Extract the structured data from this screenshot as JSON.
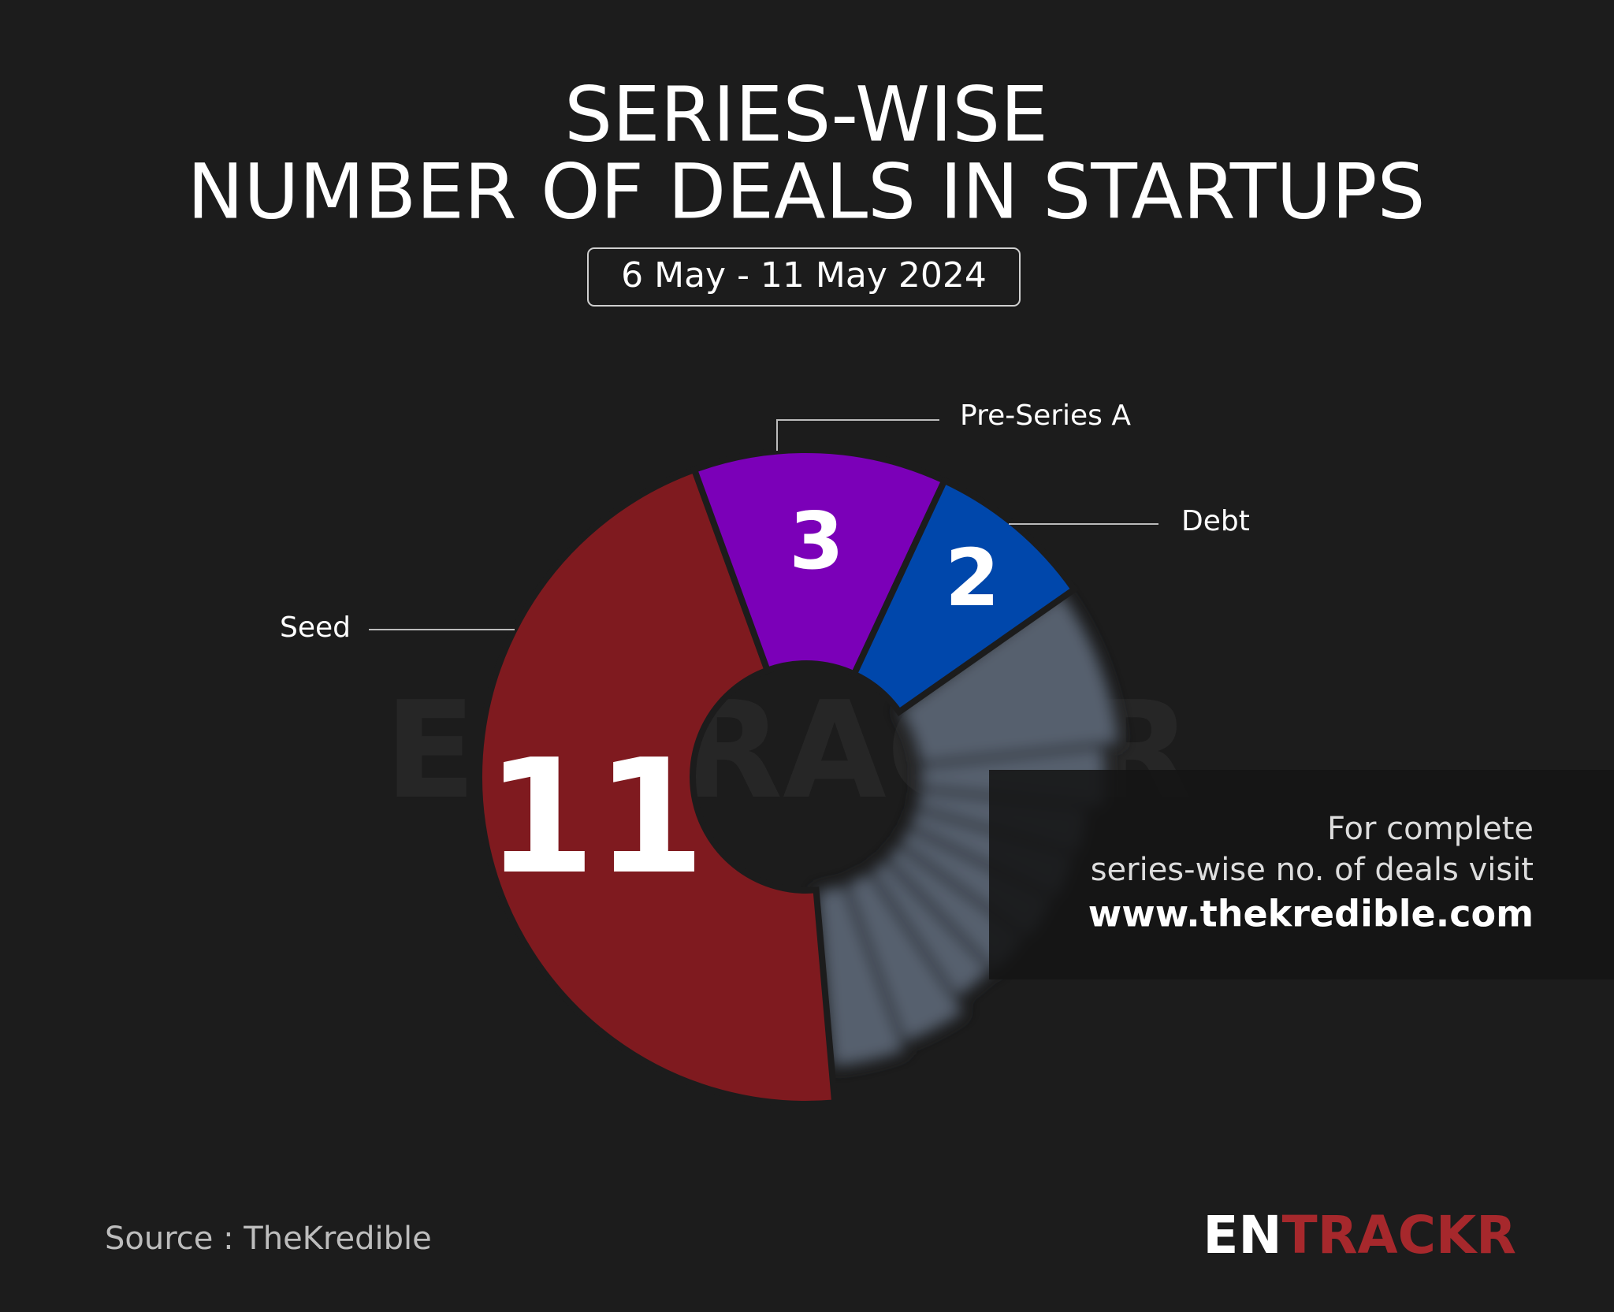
{
  "header": {
    "title_line1": "SERIES-WISE",
    "title_line2": "NUMBER OF DEALS IN STARTUPS",
    "date_range": "6 May - 11 May 2024"
  },
  "chart_data": {
    "type": "pie",
    "categories": [
      "Seed",
      "Pre-Series A",
      "Debt"
    ],
    "values": [
      11,
      3,
      2
    ],
    "colors": [
      "#7f1a1f",
      "#7b00b8",
      "#0047ab"
    ]
  },
  "overlay": {
    "line1": "For complete",
    "line2": "series-wise no. of deals visit",
    "url": "www.thekredible.com"
  },
  "footer": {
    "source": "Source : TheKredible",
    "logo_white": "EN",
    "logo_red": "TRACKR"
  }
}
